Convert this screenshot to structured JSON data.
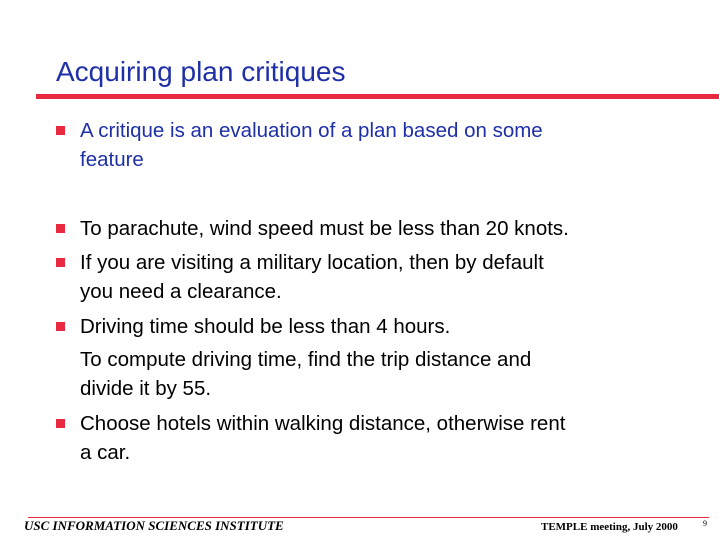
{
  "slide": {
    "title": "Acquiring plan critiques",
    "points": [
      {
        "lines": [
          "A critique is an evaluation of a plan based on some",
          "feature"
        ]
      },
      {
        "lines": [
          "To parachute, wind speed must be less than 20 knots."
        ]
      },
      {
        "lines": [
          "If you are visiting a military location, then by default",
          "you need a clearance."
        ]
      },
      {
        "lines": [
          "Driving time should be less than 4 hours."
        ]
      },
      {
        "lines": [
          "To compute driving time, find the trip distance and",
          "divide it by 55."
        ]
      },
      {
        "lines": [
          "Choose hotels within walking distance, otherwise rent",
          "a car."
        ]
      }
    ]
  },
  "footer": {
    "left": "USC INFORMATION SCIENCES INSTITUTE",
    "right": "TEMPLE meeting, July 2000",
    "page": "9"
  },
  "colors": {
    "title": "#1e2fa8",
    "accent": "#e8293f",
    "body_text": "#000000"
  }
}
